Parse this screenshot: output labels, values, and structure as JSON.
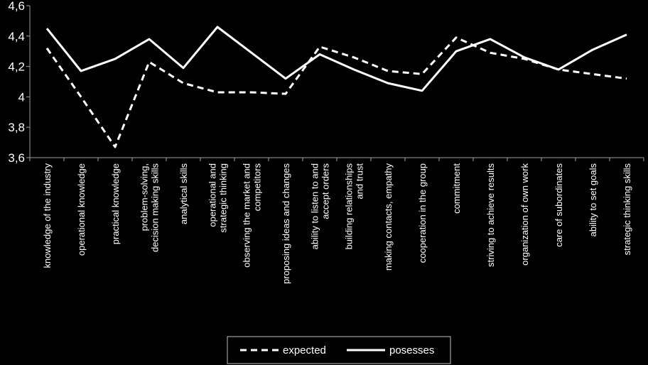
{
  "chart_data": {
    "type": "line",
    "categories": [
      "knowledge of the industry",
      "operational knowledge",
      "practical knowledge",
      "problem-solving, decision making skills",
      "analytical skills",
      "operational and strategic thinking",
      "observing the market and competitors",
      "proposing ideas and changes",
      "ability to listen to and accept orders",
      "building relationships and trust",
      "making contacts, empathy",
      "cooperation in the group",
      "commitment",
      "striving to achieve results",
      "organization of own work",
      "care of subordinates",
      "ability to set goals",
      "strategic thinking skills"
    ],
    "series": [
      {
        "name": "expected",
        "style": "dashed",
        "values": [
          4.32,
          4.0,
          3.67,
          4.23,
          4.09,
          4.03,
          4.03,
          4.02,
          4.33,
          4.26,
          4.17,
          4.15,
          4.39,
          4.29,
          4.25,
          4.18,
          4.15,
          4.12
        ]
      },
      {
        "name": "posesses",
        "style": "solid",
        "values": [
          4.45,
          4.17,
          4.25,
          4.38,
          4.19,
          4.46,
          4.29,
          4.12,
          4.28,
          4.18,
          4.09,
          4.04,
          4.3,
          4.38,
          4.26,
          4.18,
          4.31,
          4.41
        ]
      }
    ],
    "yticks": [
      "3,6",
      "3,8",
      "4",
      "4,2",
      "4,4",
      "4,6"
    ],
    "ytick_values": [
      3.6,
      3.8,
      4.0,
      4.2,
      4.4,
      4.6
    ],
    "ylim": [
      3.6,
      4.6
    ],
    "grid": false,
    "legend_position": "bottom",
    "colors": {
      "background": "#000000",
      "line": "#ffffff",
      "axis": "#a0a0a0",
      "legend_border": "#c0c0c0"
    }
  }
}
